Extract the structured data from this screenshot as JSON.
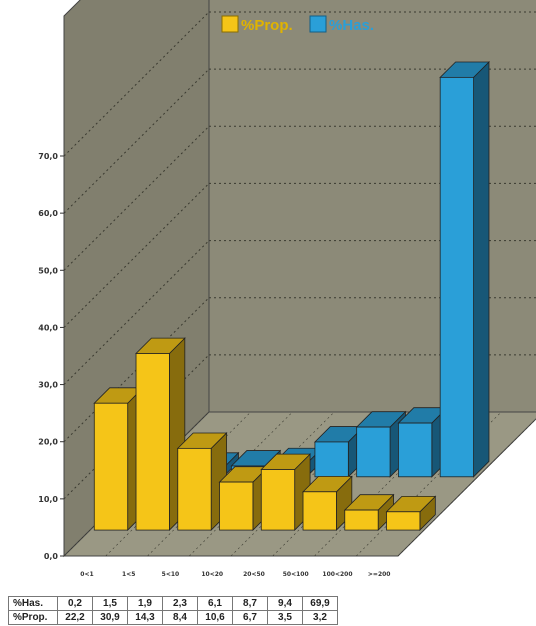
{
  "chart_data": {
    "type": "bar",
    "categories": [
      "0<1",
      "1<5",
      "5<10",
      "10<20",
      "20<50",
      "50<100",
      "100<200",
      ">=200"
    ],
    "series": [
      {
        "name": "%Prop.",
        "color": "#f5c518",
        "values": [
          22.2,
          30.9,
          14.3,
          8.4,
          10.6,
          6.7,
          3.5,
          3.2
        ]
      },
      {
        "name": "%Has.",
        "color": "#2a9fd8",
        "values": [
          0.2,
          1.5,
          1.9,
          2.3,
          6.1,
          8.7,
          9.4,
          69.9
        ]
      }
    ],
    "y_ticks": [
      "0,0",
      "10,0",
      "20,0",
      "30,0",
      "40,0",
      "50,0",
      "60,0",
      "70,0"
    ],
    "ylim": [
      0,
      70
    ],
    "legend": "top",
    "grid": true
  },
  "table": {
    "rows": [
      {
        "label": "%Has.",
        "cells": [
          "0,2",
          "1,5",
          "1,9",
          "2,3",
          "6,1",
          "8,7",
          "9,4",
          "69,9"
        ]
      },
      {
        "label": "%Prop.",
        "cells": [
          "22,2",
          "30,9",
          "14,3",
          "8,4",
          "10,6",
          "6,7",
          "3,5",
          "3,2"
        ]
      }
    ]
  },
  "colors": {
    "wall": "#8c8a78",
    "floor": "#9a9884",
    "grid": "#3a3a30"
  }
}
